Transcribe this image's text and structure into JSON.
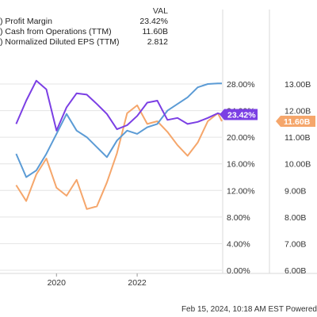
{
  "legend": {
    "header": "VAL",
    "items": [
      {
        "name": ") Profit Margin",
        "value": "23.42%",
        "color": "#7b3fe4"
      },
      {
        "name": ") Cash from Operations (TTM)",
        "value": "11.60B",
        "color": "#f5a66b"
      },
      {
        "name": ") Normalized Diluted EPS (TTM)",
        "value": "2.812",
        "color": "#5b9bd5"
      }
    ]
  },
  "footer": "Feb 15, 2024, 10:18 AM EST Powered",
  "chart_data": {
    "type": "line",
    "x_ticks": [
      "2020",
      "2022"
    ],
    "y_left_ticks": [
      "28.00%",
      "24.00%",
      "20.00%",
      "16.00%",
      "12.00%",
      "8.00%",
      "4.00%",
      "0.00%"
    ],
    "y_right_ticks": [
      "13.00B",
      "12.00B",
      "11.00B",
      "10.00B",
      "9.00B",
      "8.00B",
      "7.00B",
      "6.00B"
    ],
    "y_left_lim": [
      0,
      28
    ],
    "y_right_lim": [
      6,
      13
    ],
    "x": [
      2019.0,
      2019.25,
      2019.5,
      2019.75,
      2020.0,
      2020.25,
      2020.5,
      2020.75,
      2021.0,
      2021.25,
      2021.5,
      2021.75,
      2022.0,
      2022.25,
      2022.5,
      2022.75,
      2023.0,
      2023.25,
      2023.5,
      2023.75,
      2024.0,
      2024.1
    ],
    "series": [
      {
        "name": "Profit Margin",
        "axis": "left",
        "color": "#7b3fe4",
        "values": [
          22,
          25.5,
          28.5,
          27.2,
          21.0,
          24.5,
          26.6,
          26.4,
          25.0,
          23.5,
          21.2,
          21.8,
          23.2,
          25.2,
          25.5,
          22.6,
          22.9,
          22.0,
          22.3,
          22.9,
          23.6,
          23.42
        ]
      },
      {
        "name": "Cash from Operations (TTM)",
        "axis": "right",
        "color": "#f5a66b",
        "values": [
          9.2,
          8.6,
          9.6,
          10.2,
          9.1,
          8.8,
          9.4,
          8.3,
          8.4,
          9.3,
          10.4,
          11.9,
          12.2,
          11.5,
          11.6,
          11.2,
          10.7,
          10.3,
          10.8,
          11.6,
          11.9,
          11.6
        ]
      },
      {
        "name": "Normalized Diluted EPS (TTM)",
        "axis": "left",
        "color": "#5b9bd5",
        "values": [
          17.5,
          14.0,
          15.0,
          17.5,
          20.5,
          23.5,
          21.0,
          20.0,
          18.5,
          17.0,
          19.5,
          21.0,
          20.5,
          21.5,
          22.0,
          24.0,
          25.0,
          26.0,
          27.5,
          28.0,
          28.1,
          28.1
        ]
      }
    ],
    "value_tags": [
      {
        "text": "23.42%",
        "color": "#7b3fe4"
      },
      {
        "text": "11.60B",
        "color": "#f5a66b"
      }
    ]
  }
}
